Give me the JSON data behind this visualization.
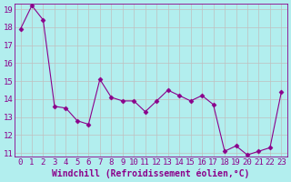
{
  "x": [
    0,
    1,
    2,
    3,
    4,
    5,
    6,
    7,
    8,
    9,
    10,
    11,
    12,
    13,
    14,
    15,
    16,
    17,
    18,
    19,
    20,
    21,
    22,
    23
  ],
  "y": [
    17.9,
    19.2,
    18.4,
    13.6,
    13.5,
    12.8,
    12.6,
    15.1,
    14.1,
    13.9,
    13.9,
    13.3,
    13.9,
    14.5,
    14.2,
    13.9,
    14.2,
    13.7,
    11.1,
    11.4,
    10.9,
    11.1,
    11.3,
    14.4
  ],
  "ylim": [
    11,
    19
  ],
  "xlim": [
    -0.5,
    23.5
  ],
  "yticks": [
    11,
    12,
    13,
    14,
    15,
    16,
    17,
    18,
    19
  ],
  "xticks": [
    0,
    1,
    2,
    3,
    4,
    5,
    6,
    7,
    8,
    9,
    10,
    11,
    12,
    13,
    14,
    15,
    16,
    17,
    18,
    19,
    20,
    21,
    22,
    23
  ],
  "xlabel": "Windchill (Refroidissement éolien,°C)",
  "line_color": "#8B008B",
  "marker": "D",
  "marker_size": 2.5,
  "bg_color": "#b2eeee",
  "grid_color": "#c0c0c0",
  "tick_fontsize": 6.5,
  "xlabel_fontsize": 7
}
